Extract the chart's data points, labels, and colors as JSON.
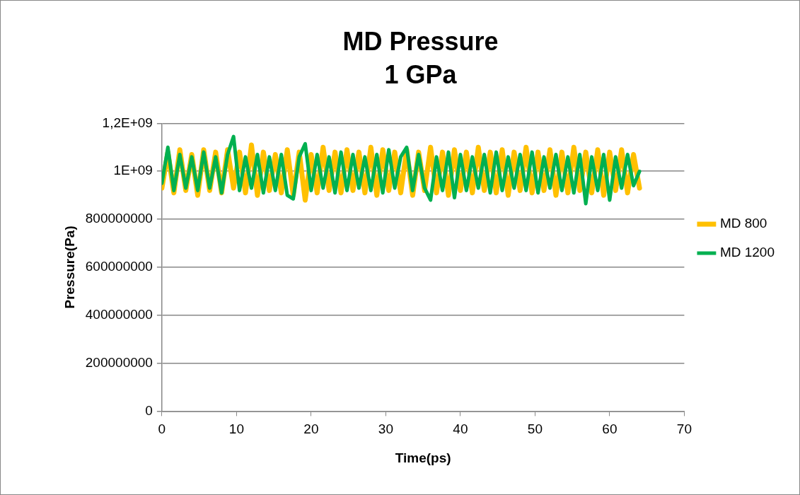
{
  "chart_data": {
    "type": "line",
    "title": "MD Pressure",
    "subtitle": "1 GPa",
    "xlabel": "Time(ps)",
    "ylabel": "Pressure(Pa)",
    "x": [
      0,
      0.8,
      1.6,
      2.4,
      3.2,
      4,
      4.8,
      5.6,
      6.4,
      7.2,
      8,
      8.8,
      9.6,
      10.4,
      11.2,
      12,
      12.8,
      13.6,
      14.4,
      15.2,
      16,
      16.8,
      17.6,
      18.4,
      19.2,
      20,
      20.8,
      21.6,
      22.4,
      23.2,
      24,
      24.8,
      25.6,
      26.4,
      27.2,
      28,
      28.8,
      29.6,
      30.4,
      31.2,
      32,
      32.8,
      33.6,
      34.4,
      35.2,
      36,
      36.8,
      37.6,
      38.4,
      39.2,
      40,
      40.8,
      41.6,
      42.4,
      43.2,
      44,
      44.8,
      45.6,
      46.4,
      47.2,
      48,
      48.8,
      49.6,
      50.4,
      51.2,
      52,
      52.8,
      53.6,
      54.4,
      55.2,
      56,
      56.8,
      57.6,
      58.4,
      59.2,
      60,
      60.8,
      61.6,
      62.4,
      63.2,
      64
    ],
    "series": [
      {
        "name": "MD 800",
        "color": "#ffc000",
        "values": [
          930000000.0,
          1080000000.0,
          910000000.0,
          1090000000.0,
          920000000.0,
          1070000000.0,
          900000000.0,
          1090000000.0,
          920000000.0,
          1080000000.0,
          910000000.0,
          1090000000.0,
          930000000.0,
          1080000000.0,
          910000000.0,
          1110000000.0,
          900000000.0,
          1080000000.0,
          920000000.0,
          1070000000.0,
          910000000.0,
          1090000000.0,
          900000000.0,
          1080000000.0,
          880000000.0,
          1070000000.0,
          910000000.0,
          1100000000.0,
          920000000.0,
          1080000000.0,
          910000000.0,
          1090000000.0,
          920000000.0,
          1080000000.0,
          910000000.0,
          1100000000.0,
          900000000.0,
          1090000000.0,
          920000000.0,
          1080000000.0,
          910000000.0,
          1090000000.0,
          900000000.0,
          1080000000.0,
          920000000.0,
          1100000000.0,
          910000000.0,
          1080000000.0,
          900000000.0,
          1090000000.0,
          920000000.0,
          1080000000.0,
          910000000.0,
          1100000000.0,
          920000000.0,
          1080000000.0,
          910000000.0,
          1090000000.0,
          900000000.0,
          1080000000.0,
          920000000.0,
          1100000000.0,
          910000000.0,
          1080000000.0,
          920000000.0,
          1090000000.0,
          900000000.0,
          1080000000.0,
          910000000.0,
          1100000000.0,
          920000000.0,
          1080000000.0,
          910000000.0,
          1090000000.0,
          900000000.0,
          1080000000.0,
          920000000.0,
          1090000000.0,
          910000000.0,
          1070000000.0,
          930000000.0
        ]
      },
      {
        "name": "MD 1200",
        "color": "#00b050",
        "values": [
          950000000.0,
          1100000000.0,
          920000000.0,
          1070000000.0,
          930000000.0,
          1060000000.0,
          920000000.0,
          1080000000.0,
          930000000.0,
          1060000000.0,
          910000000.0,
          1070000000.0,
          1145000000.0,
          920000000.0,
          1060000000.0,
          930000000.0,
          1070000000.0,
          910000000.0,
          1060000000.0,
          920000000.0,
          1070000000.0,
          900000000.0,
          885000000.0,
          1060000000.0,
          1115000000.0,
          920000000.0,
          1070000000.0,
          930000000.0,
          1060000000.0,
          910000000.0,
          1080000000.0,
          920000000.0,
          1070000000.0,
          930000000.0,
          1060000000.0,
          920000000.0,
          1070000000.0,
          910000000.0,
          1090000000.0,
          930000000.0,
          1060000000.0,
          1100000000.0,
          920000000.0,
          1070000000.0,
          930000000.0,
          880000000.0,
          1060000000.0,
          920000000.0,
          1080000000.0,
          890000000.0,
          1070000000.0,
          920000000.0,
          1060000000.0,
          930000000.0,
          1070000000.0,
          910000000.0,
          1080000000.0,
          920000000.0,
          1060000000.0,
          930000000.0,
          1070000000.0,
          920000000.0,
          1080000000.0,
          910000000.0,
          1060000000.0,
          930000000.0,
          1070000000.0,
          920000000.0,
          1060000000.0,
          910000000.0,
          1070000000.0,
          865000000.0,
          1060000000.0,
          920000000.0,
          1070000000.0,
          880000000.0,
          1060000000.0,
          930000000.0,
          1070000000.0,
          940000000.0,
          1000000000.0
        ]
      }
    ],
    "xlim": [
      0,
      70
    ],
    "xticks": [
      0,
      10,
      20,
      30,
      40,
      50,
      60,
      70
    ],
    "ylim": [
      0,
      1200000000.0
    ],
    "yticks": [
      0,
      200000000,
      400000000,
      600000000,
      800000000,
      {
        "value": 1000000000.0,
        "label": "1E+09"
      },
      {
        "value": 1200000000.0,
        "label": "1,2E+09"
      }
    ],
    "grid": "y",
    "legend": "right",
    "marker": "none",
    "line_style": "solid"
  }
}
